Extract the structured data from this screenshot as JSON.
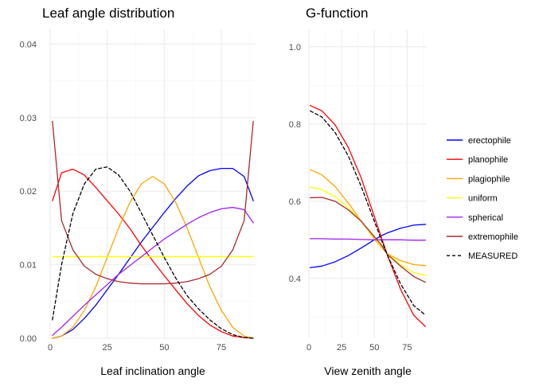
{
  "chart_data": [
    {
      "type": "line",
      "title": "Leaf angle distribution",
      "xlabel": "Leaf inclination angle",
      "ylabel": "",
      "xlim": [
        0,
        90
      ],
      "ylim": [
        0,
        0.042
      ],
      "xticks": [
        0,
        25,
        50,
        75
      ],
      "xtick_labels": [
        "0",
        "25",
        "50",
        "75"
      ],
      "yticks": [
        0,
        0.01,
        0.02,
        0.03,
        0.04
      ],
      "ytick_labels": [
        "0.00",
        "0.01",
        "0.02",
        "0.03",
        "0.04"
      ],
      "grid": true,
      "x": [
        1,
        5,
        10,
        15,
        20,
        25,
        30,
        35,
        40,
        45,
        50,
        55,
        60,
        65,
        70,
        75,
        80,
        85,
        89
      ],
      "series": [
        {
          "name": "erectophile",
          "values": [
            0.0,
            0.0003,
            0.0012,
            0.0027,
            0.0045,
            0.0066,
            0.0087,
            0.0109,
            0.0131,
            0.0151,
            0.0171,
            0.019,
            0.0207,
            0.0221,
            0.0228,
            0.0231,
            0.0231,
            0.022,
            0.0187
          ]
        },
        {
          "name": "planophile",
          "values": [
            0.0187,
            0.0225,
            0.023,
            0.0222,
            0.0205,
            0.0187,
            0.0169,
            0.0149,
            0.0126,
            0.0105,
            0.0085,
            0.0066,
            0.0047,
            0.0031,
            0.0018,
            0.0009,
            0.0003,
            0.0001,
            0.0
          ]
        },
        {
          "name": "plagiophile",
          "values": [
            0.0,
            0.0003,
            0.0015,
            0.0038,
            0.007,
            0.011,
            0.015,
            0.0185,
            0.021,
            0.022,
            0.021,
            0.0185,
            0.015,
            0.011,
            0.007,
            0.0038,
            0.0015,
            0.0003,
            0.0
          ]
        },
        {
          "name": "uniform",
          "values": [
            0.0111,
            0.0111,
            0.0111,
            0.0111,
            0.0111,
            0.0111,
            0.0111,
            0.0111,
            0.0111,
            0.0111,
            0.0111,
            0.0111,
            0.0111,
            0.0111,
            0.0111,
            0.0111,
            0.0111,
            0.0111,
            0.0111
          ]
        },
        {
          "name": "spherical",
          "values": [
            0.0004,
            0.0015,
            0.003,
            0.0045,
            0.0059,
            0.0073,
            0.0087,
            0.0099,
            0.0111,
            0.0123,
            0.0135,
            0.0145,
            0.0155,
            0.0164,
            0.0171,
            0.0176,
            0.0178,
            0.0175,
            0.0157
          ]
        },
        {
          "name": "extremophile",
          "values": [
            0.0295,
            0.016,
            0.012,
            0.0098,
            0.0087,
            0.0081,
            0.0077,
            0.0075,
            0.0074,
            0.0074,
            0.0074,
            0.0075,
            0.0077,
            0.0081,
            0.0087,
            0.0098,
            0.012,
            0.016,
            0.0295
          ]
        },
        {
          "name": "MEASURED",
          "values": [
            0.0025,
            0.01,
            0.017,
            0.021,
            0.023,
            0.0233,
            0.0222,
            0.02,
            0.017,
            0.014,
            0.011,
            0.0082,
            0.0058,
            0.004,
            0.0025,
            0.0013,
            0.0005,
            0.0001,
            0.0
          ]
        }
      ]
    },
    {
      "type": "line",
      "title": "G-function",
      "xlabel": "View zenith angle",
      "ylabel": "",
      "xlim": [
        0,
        90
      ],
      "ylim": [
        0.245,
        1.045
      ],
      "xticks": [
        0,
        25,
        50,
        75
      ],
      "xtick_labels": [
        "0",
        "25",
        "50",
        "75"
      ],
      "yticks": [
        0.4,
        0.6,
        0.8,
        1.0
      ],
      "ytick_labels": [
        "0.4",
        "0.6",
        "0.8",
        "1.0"
      ],
      "grid": true,
      "x": [
        1,
        10,
        20,
        30,
        40,
        50,
        55,
        60,
        70,
        80,
        89
      ],
      "series": [
        {
          "name": "erectophile",
          "values": [
            0.428,
            0.432,
            0.443,
            0.459,
            0.479,
            0.5,
            0.51,
            0.518,
            0.53,
            0.538,
            0.54
          ]
        },
        {
          "name": "planophile",
          "values": [
            0.848,
            0.834,
            0.798,
            0.74,
            0.66,
            0.56,
            0.51,
            0.46,
            0.372,
            0.305,
            0.275
          ]
        },
        {
          "name": "plagiophile",
          "values": [
            0.682,
            0.668,
            0.638,
            0.596,
            0.548,
            0.502,
            0.482,
            0.464,
            0.446,
            0.436,
            0.433
          ]
        },
        {
          "name": "uniform",
          "values": [
            0.637,
            0.63,
            0.612,
            0.584,
            0.548,
            0.505,
            0.484,
            0.464,
            0.436,
            0.415,
            0.408
          ]
        },
        {
          "name": "spherical",
          "values": [
            0.503,
            0.503,
            0.502,
            0.502,
            0.501,
            0.5,
            0.5,
            0.5,
            0.5,
            0.499,
            0.499
          ]
        },
        {
          "name": "extremophile",
          "values": [
            0.609,
            0.61,
            0.6,
            0.578,
            0.548,
            0.508,
            0.488,
            0.462,
            0.432,
            0.405,
            0.39
          ]
        },
        {
          "name": "MEASURED",
          "values": [
            0.834,
            0.818,
            0.778,
            0.718,
            0.638,
            0.548,
            0.503,
            0.46,
            0.386,
            0.33,
            0.305
          ]
        }
      ]
    }
  ],
  "legend": {
    "placement": "right",
    "items": [
      {
        "label": "erectophile",
        "color": "#0000ff",
        "dash": false
      },
      {
        "label": "planophile",
        "color": "#ff0000",
        "dash": false
      },
      {
        "label": "plagiophile",
        "color": "#ffa500",
        "dash": false
      },
      {
        "label": "uniform",
        "color": "#ffff00",
        "dash": false
      },
      {
        "label": "spherical",
        "color": "#a020f0",
        "dash": false
      },
      {
        "label": "extremophile",
        "color": "#a52a2a",
        "dash": false
      },
      {
        "label": "MEASURED",
        "color": "#000000",
        "dash": true
      }
    ]
  },
  "colors": {
    "grid_major": "#ebebeb",
    "grid_minor": "#f5f5f5",
    "tick_text": "#4d4d4d"
  }
}
